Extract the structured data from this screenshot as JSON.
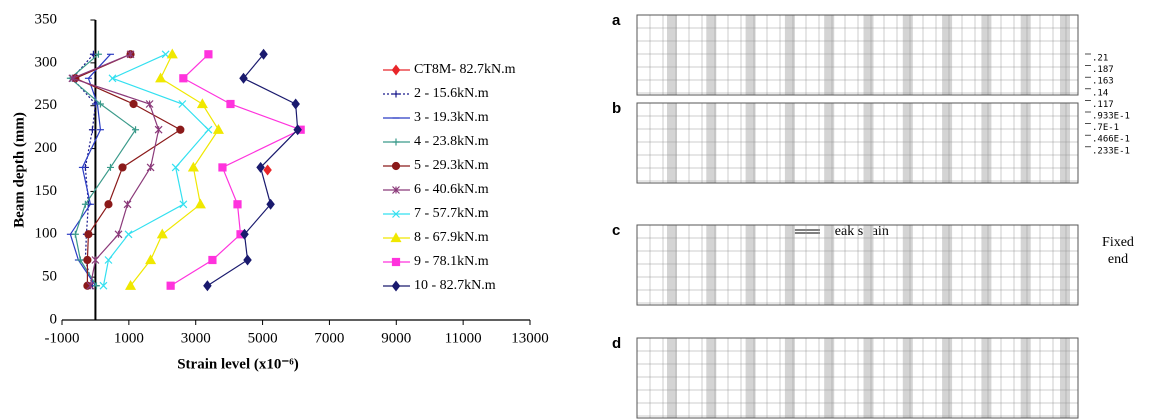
{
  "chart_data": {
    "type": "line",
    "x_label": "Strain level (x10⁻⁶)",
    "y_label": "Beam depth (mm)",
    "xlim": [
      -1000,
      13000
    ],
    "xticks": [
      -1000,
      1000,
      3000,
      5000,
      7000,
      9000,
      11000,
      13000
    ],
    "ylim": [
      0,
      350
    ],
    "yticks": [
      0,
      50,
      100,
      150,
      200,
      250,
      300,
      350
    ],
    "series": [
      {
        "name": "CT8M- 82.7kN.m",
        "color": "#e8262a",
        "marker": "diamond",
        "dash": "solid",
        "x": [
          5150
        ],
        "values": [
          175
        ]
      },
      {
        "name": "2 - 15.6kN.m",
        "color": "#1a1a8c",
        "marker": "plus",
        "dash": "dotted",
        "x": [
          -90,
          -300,
          -270,
          -210,
          -300,
          -90,
          0,
          -690,
          -60
        ],
        "values": [
          40,
          70,
          100,
          135,
          178,
          222,
          252,
          282,
          310
        ]
      },
      {
        "name": "3 - 19.3kN.m",
        "color": "#2b3cc4",
        "marker": "dash",
        "dash": "solid",
        "x": [
          0,
          -510,
          -750,
          -150,
          -390,
          150,
          60,
          -210,
          450
        ],
        "values": [
          40,
          70,
          100,
          135,
          178,
          222,
          252,
          282,
          310
        ]
      },
      {
        "name": "4 - 23.8kN.m",
        "color": "#3a9a8a",
        "marker": "plus",
        "dash": "solid",
        "x": [
          30,
          -450,
          -600,
          -300,
          450,
          1200,
          150,
          -750,
          90
        ],
        "values": [
          40,
          70,
          100,
          135,
          178,
          222,
          252,
          282,
          310
        ]
      },
      {
        "name": "5 - 29.3kN.m",
        "color": "#8b1a1a",
        "marker": "circle",
        "dash": "solid",
        "x": [
          -240,
          -240,
          -210,
          390,
          810,
          2540,
          1140,
          -600,
          1050
        ],
        "values": [
          40,
          70,
          100,
          135,
          178,
          222,
          252,
          282,
          310
        ]
      },
      {
        "name": "6 - 40.6kN.m",
        "color": "#8b3a7a",
        "marker": "star",
        "dash": "solid",
        "x": [
          -150,
          0,
          690,
          960,
          1650,
          1890,
          1620,
          -690,
          1050
        ],
        "values": [
          40,
          70,
          100,
          135,
          178,
          222,
          252,
          282,
          310
        ]
      },
      {
        "name": "7 - 57.7kN.m",
        "color": "#33e0f0",
        "marker": "cross",
        "dash": "solid",
        "x": [
          240,
          390,
          990,
          2630,
          2400,
          3380,
          2600,
          510,
          2100
        ],
        "values": [
          40,
          70,
          100,
          135,
          178,
          222,
          252,
          282,
          310
        ]
      },
      {
        "name": "8 - 67.9kN.m",
        "color": "#f0e800",
        "marker": "triangle",
        "dash": "solid",
        "x": [
          1050,
          1650,
          2000,
          3140,
          2930,
          3680,
          3200,
          1950,
          2300
        ],
        "values": [
          40,
          70,
          100,
          135,
          178,
          222,
          252,
          282,
          310
        ]
      },
      {
        "name": "9 - 78.1kN.m",
        "color": "#ff33dd",
        "marker": "square",
        "dash": "solid",
        "x": [
          2250,
          3500,
          4340,
          4250,
          3800,
          6140,
          4040,
          2630,
          3380
        ],
        "values": [
          40,
          70,
          100,
          135,
          178,
          222,
          252,
          282,
          310
        ]
      },
      {
        "name": "10 - 82.7kN.m",
        "color": "#1a1a6e",
        "marker": "diamond",
        "dash": "solid",
        "x": [
          3350,
          4550,
          4460,
          5240,
          4940,
          6050,
          5990,
          4430,
          5030
        ],
        "values": [
          40,
          70,
          100,
          135,
          178,
          222,
          252,
          282,
          310
        ]
      }
    ]
  },
  "diagram": {
    "panels": [
      {
        "label": "a"
      },
      {
        "label": "b"
      },
      {
        "label": "c"
      },
      {
        "label": "d"
      }
    ],
    "scale_labels": [
      ".21",
      ".187",
      ".163",
      ".14",
      ".117",
      ".933E-1",
      ".7E-1",
      ".466E-1",
      ".233E-1"
    ],
    "annotation": "Peak strain",
    "side_label": [
      "Fixed",
      "end"
    ]
  }
}
